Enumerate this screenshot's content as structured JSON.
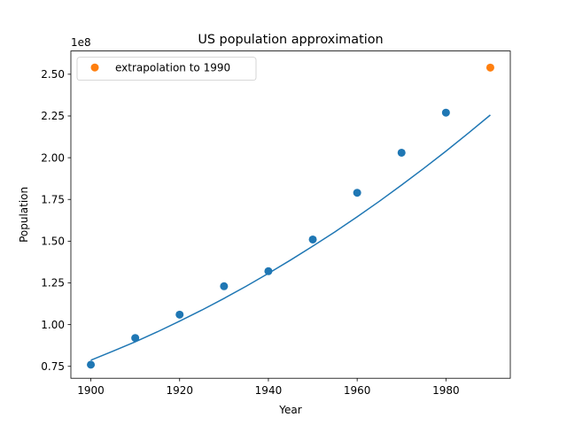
{
  "chart_data": {
    "type": "scatter",
    "title": "US population approximation",
    "xlabel": "Year",
    "ylabel": "Population",
    "y_offset_label": "1e8",
    "xlim": [
      1895.5,
      1994.5
    ],
    "ylim": [
      0.6787,
      2.6393
    ],
    "x_ticks": [
      1900,
      1920,
      1940,
      1960,
      1980
    ],
    "x_tick_labels": [
      "1900",
      "1920",
      "1940",
      "1960",
      "1980"
    ],
    "y_ticks": [
      0.75,
      1.0,
      1.25,
      1.5,
      1.75,
      2.0,
      2.25,
      2.5
    ],
    "y_tick_labels": [
      "0.75",
      "1.00",
      "1.25",
      "1.50",
      "1.75",
      "2.00",
      "2.25",
      "2.50"
    ],
    "grid": false,
    "legend_position": "upper-left",
    "series": [
      {
        "kind": "scatter",
        "color": "#1f77b4",
        "x": [
          1900,
          1910,
          1920,
          1930,
          1940,
          1950,
          1960,
          1970,
          1980
        ],
        "y": [
          0.76,
          0.92,
          1.06,
          1.23,
          1.32,
          1.51,
          1.79,
          2.03,
          2.27
        ]
      },
      {
        "kind": "line",
        "color": "#1f77b4",
        "x": [
          1900,
          1905,
          1910,
          1915,
          1920,
          1925,
          1930,
          1935,
          1940,
          1945,
          1950,
          1955,
          1960,
          1965,
          1970,
          1975,
          1980,
          1985,
          1990
        ],
        "y": [
          0.787,
          0.841,
          0.897,
          0.957,
          1.021,
          1.087,
          1.157,
          1.23,
          1.307,
          1.387,
          1.47,
          1.556,
          1.646,
          1.739,
          1.836,
          1.936,
          2.039,
          2.146,
          2.256
        ]
      },
      {
        "name": "extrapolation to 1990",
        "kind": "scatter",
        "color": "#ff7f0e",
        "x": [
          1990
        ],
        "y": [
          2.54
        ]
      }
    ]
  }
}
